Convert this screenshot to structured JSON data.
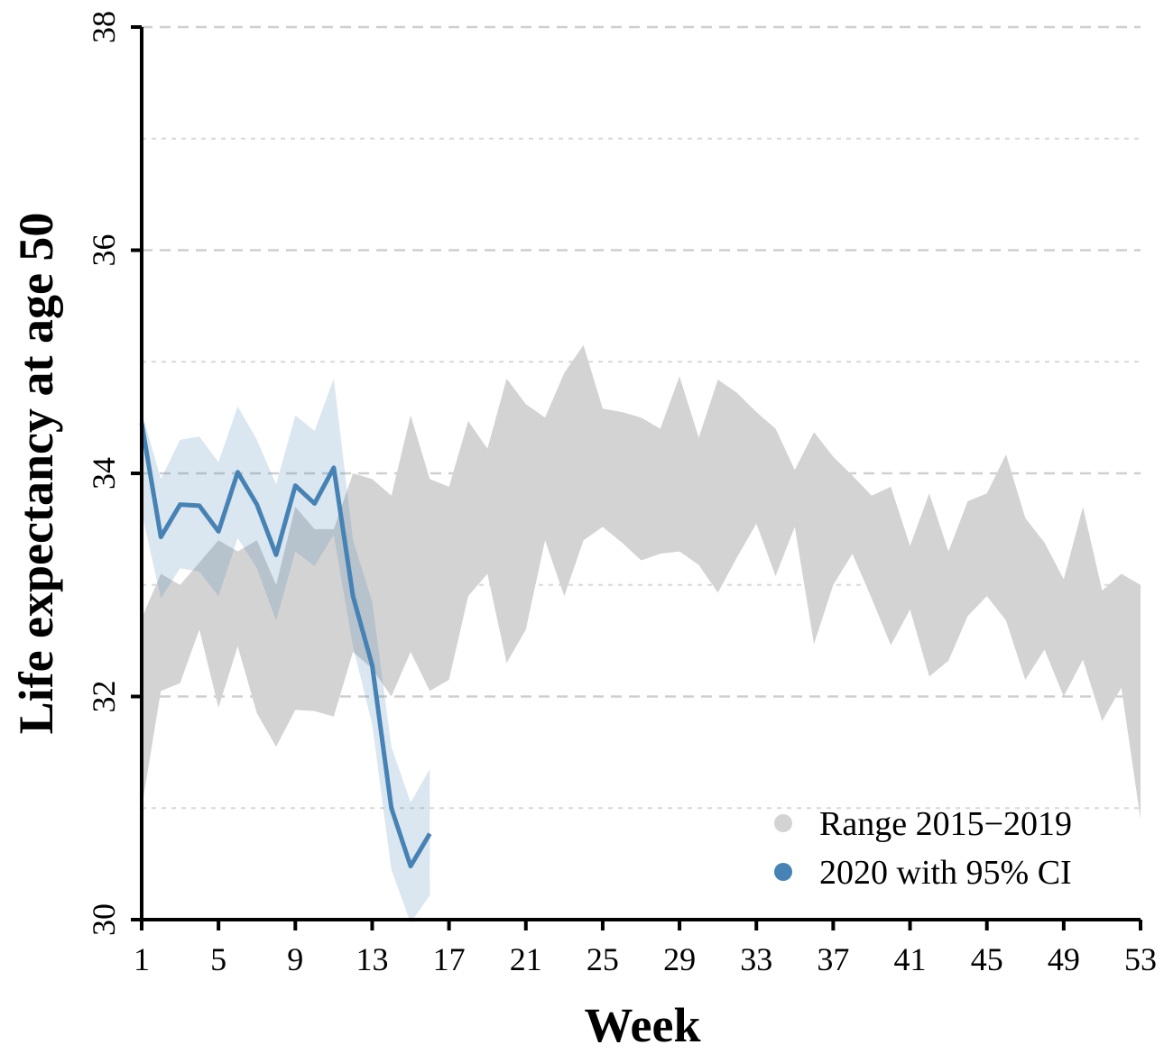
{
  "chart_data": {
    "type": "line",
    "y_label": "Life expectancy at age 50",
    "x_label": "Week",
    "xlim": [
      1,
      53
    ],
    "xticks": [
      1,
      5,
      9,
      13,
      17,
      21,
      25,
      29,
      33,
      37,
      41,
      45,
      49,
      53
    ],
    "ylim": [
      30,
      38
    ],
    "yticks": [
      30,
      32,
      34,
      36,
      38
    ],
    "minor_yticks": [
      31,
      33,
      35,
      37
    ],
    "grid": true,
    "legend": "bottom-right",
    "series": [
      {
        "name": "Range 2015−2019",
        "color": "#d3d3d3",
        "x": [
          1,
          2,
          3,
          4,
          5,
          6,
          7,
          8,
          9,
          10,
          11,
          12,
          13,
          14,
          15,
          16,
          17,
          18,
          19,
          20,
          21,
          22,
          23,
          24,
          25,
          26,
          27,
          28,
          29,
          30,
          31,
          32,
          33,
          34,
          35,
          36,
          37,
          38,
          39,
          40,
          41,
          42,
          43,
          44,
          45,
          46,
          47,
          48,
          49,
          50,
          51,
          52,
          53
        ],
        "lower": [
          31.0,
          32.05,
          32.12,
          32.6,
          31.9,
          32.45,
          31.85,
          31.55,
          31.88,
          31.87,
          31.82,
          32.4,
          32.25,
          32.0,
          32.4,
          32.05,
          32.15,
          32.9,
          33.1,
          32.3,
          32.6,
          33.4,
          32.9,
          33.4,
          33.52,
          33.38,
          33.22,
          33.28,
          33.3,
          33.18,
          32.93,
          33.25,
          33.55,
          33.08,
          33.52,
          32.47,
          33.0,
          33.28,
          32.88,
          32.46,
          32.78,
          32.18,
          32.32,
          32.72,
          32.9,
          32.68,
          32.15,
          32.42,
          32.0,
          32.33,
          31.78,
          32.08,
          30.9
        ],
        "upper": [
          32.7,
          33.1,
          33.0,
          33.2,
          33.4,
          33.3,
          33.4,
          33.0,
          33.7,
          33.5,
          33.5,
          34.0,
          33.95,
          33.8,
          34.52,
          33.95,
          33.88,
          34.47,
          34.22,
          34.85,
          34.62,
          34.5,
          34.9,
          35.15,
          34.58,
          34.55,
          34.5,
          34.4,
          34.87,
          34.32,
          34.84,
          34.72,
          34.55,
          34.4,
          34.03,
          34.37,
          34.15,
          33.98,
          33.8,
          33.88,
          33.35,
          33.82,
          33.3,
          33.75,
          33.82,
          34.17,
          33.6,
          33.38,
          33.05,
          33.7,
          32.95,
          33.1,
          33.0
        ]
      },
      {
        "name": "2020 with 95% CI",
        "color": "#4682b4",
        "x": [
          1,
          2,
          3,
          4,
          5,
          6,
          7,
          8,
          9,
          10,
          11,
          12,
          13,
          14,
          15,
          16
        ],
        "values": [
          34.45,
          33.43,
          33.72,
          33.71,
          33.48,
          34.01,
          33.72,
          33.27,
          33.89,
          33.73,
          34.05,
          32.9,
          32.28,
          31.0,
          30.48,
          30.77
        ],
        "lower": [
          33.65,
          32.88,
          33.15,
          33.12,
          32.9,
          33.42,
          33.15,
          32.68,
          33.3,
          33.17,
          33.45,
          32.45,
          31.75,
          30.45,
          29.97,
          30.22
        ],
        "upper": [
          34.55,
          33.95,
          34.3,
          34.33,
          34.1,
          34.6,
          34.3,
          33.9,
          34.52,
          34.38,
          34.85,
          33.4,
          32.85,
          31.55,
          31.05,
          31.35
        ]
      }
    ]
  }
}
